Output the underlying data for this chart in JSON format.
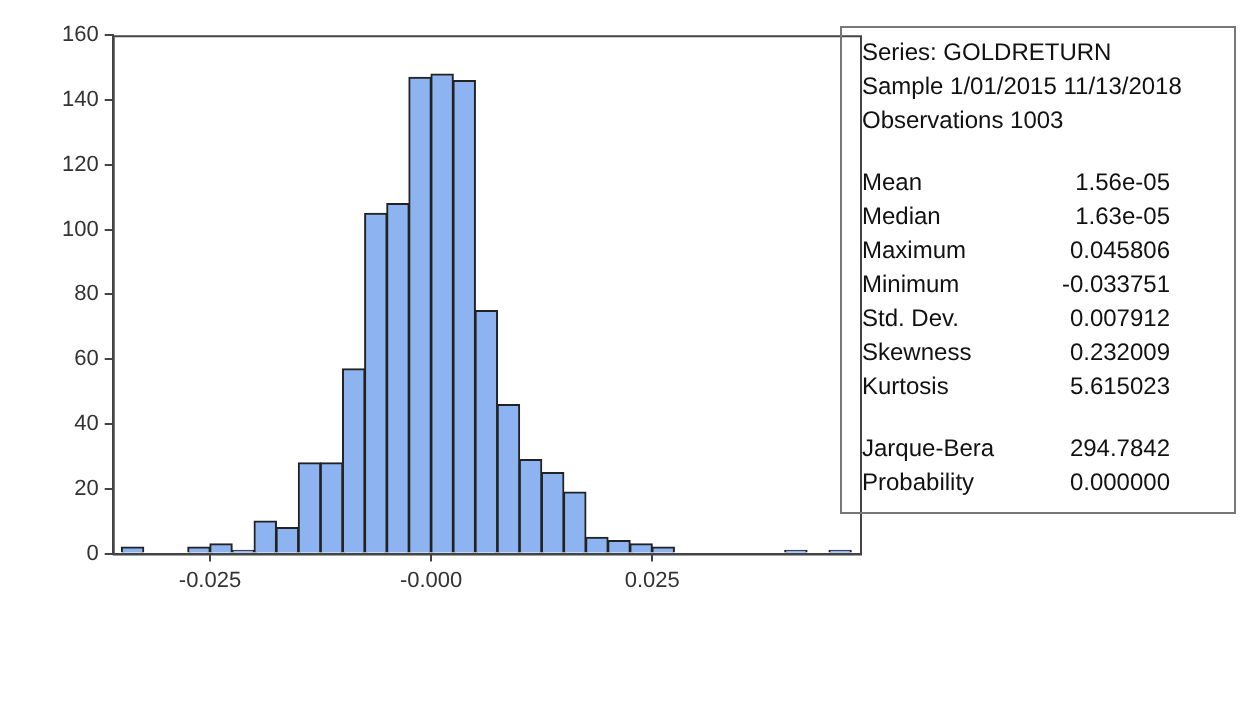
{
  "chart_data": {
    "type": "histogram",
    "bins": [
      -0.035,
      -0.0325,
      -0.03,
      -0.0275,
      -0.025,
      -0.0225,
      -0.02,
      -0.0175,
      -0.015,
      -0.0125,
      -0.01,
      -0.0075,
      -0.005,
      -0.0025,
      0,
      0.0025,
      0.005,
      0.0075,
      0.01,
      0.0125,
      0.015,
      0.0175,
      0.02,
      0.0225,
      0.025,
      0.0275,
      0.03,
      0.0325,
      0.035,
      0.0375,
      0.04,
      0.0425,
      0.045,
      0.0475
    ],
    "values": [
      2,
      0,
      0,
      2,
      3,
      1,
      10,
      8,
      28,
      28,
      57,
      105,
      108,
      147,
      148,
      146,
      75,
      46,
      29,
      25,
      19,
      5,
      4,
      3,
      2,
      0,
      0,
      0,
      0,
      0,
      1,
      0,
      1
    ],
    "color": "#8db4f0",
    "xlim": [
      -0.036,
      0.0485
    ],
    "xticks": [
      -0.025,
      {
        "value": 0,
        "label": "-0.000"
      },
      0.025
    ],
    "ylim": [
      0,
      160
    ],
    "yticks": [
      0,
      20,
      40,
      60,
      80,
      100,
      120,
      140,
      160
    ],
    "grid": false,
    "legend": false,
    "annotations": [
      "Series: GOLDRETURN",
      "Sample 1/01/2015 11/13/2018",
      "Observations 1003",
      "Mean\t1.56e-05",
      "Median\t1.63e-05",
      "Maximum\t0.045806",
      "Minimum\t-0.033751",
      "Std. Dev.\t0.007912",
      "Skewness\t0.232009",
      "Kurtosis\t5.615023",
      "Jarque-Bera\t294.7842",
      "Probability\t0.000000"
    ]
  }
}
